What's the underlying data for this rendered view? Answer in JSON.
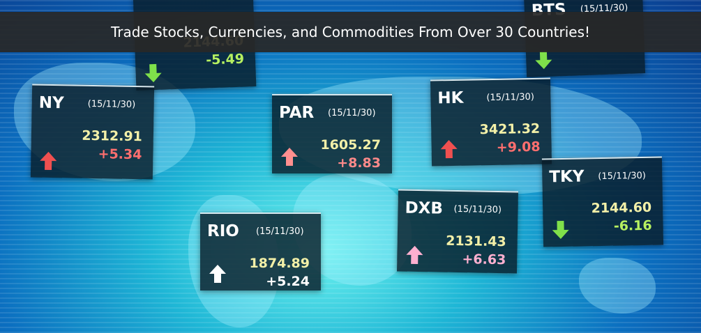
{
  "banner": {
    "title": "Trade Stocks, Currencies, and Commodities From Over 30 Countries!"
  },
  "cards": [
    {
      "price": "2144.60",
      "change": "-5.49"
    },
    {
      "city": "BTS",
      "date": "(15/11/30)"
    },
    {
      "city": "NY",
      "date": "(15/11/30)",
      "price": "2312.91",
      "change": "+5.34"
    },
    {
      "city": "PAR",
      "date": "(15/11/30)",
      "price": "1605.27",
      "change": "+8.83"
    },
    {
      "city": "HK",
      "date": "(15/11/30)",
      "price": "3421.32",
      "change": "+9.08"
    },
    {
      "city": "TKY",
      "date": "(15/11/30)",
      "price": "2144.60",
      "change": "-6.16"
    },
    {
      "city": "DXB",
      "date": "(15/11/30)",
      "price": "2131.43",
      "change": "+6.63"
    },
    {
      "city": "RIO",
      "date": "(15/11/30)",
      "price": "1874.89",
      "change": "+5.24"
    }
  ]
}
